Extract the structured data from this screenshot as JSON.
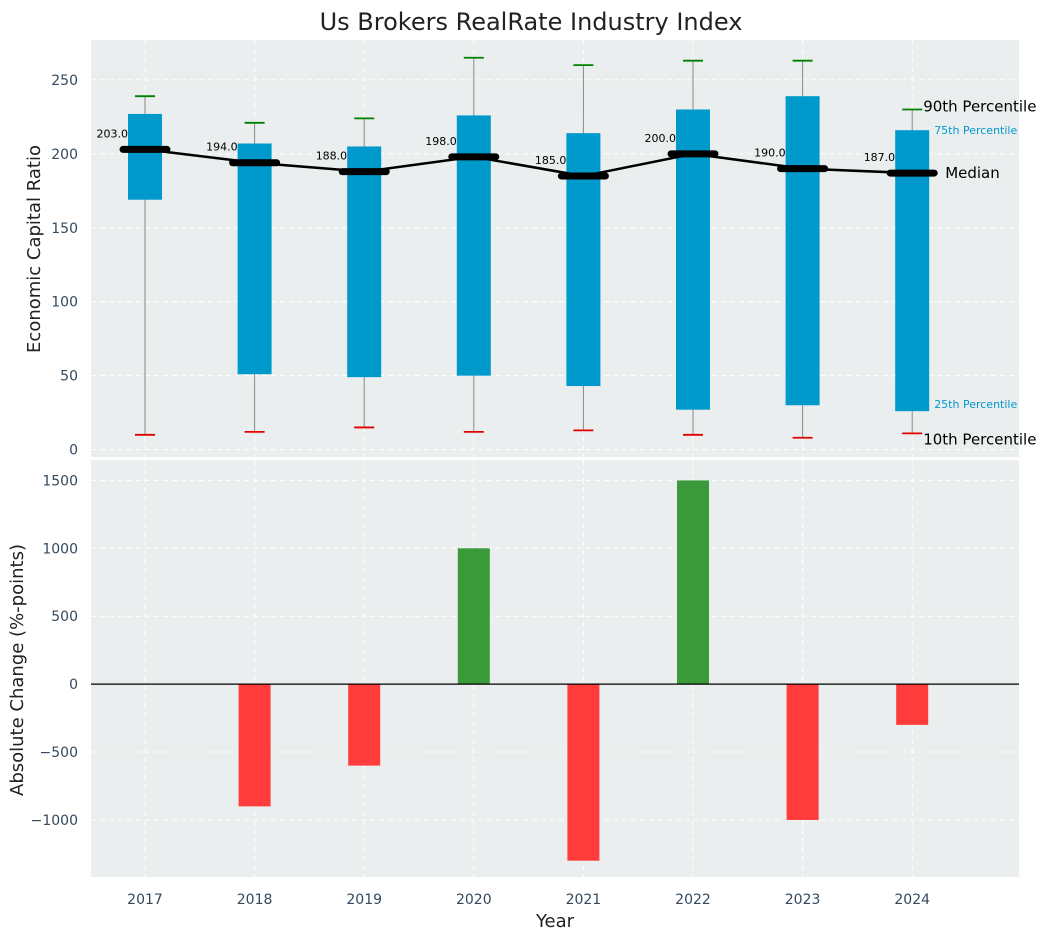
{
  "title": "Us Brokers RealRate Industry Index",
  "chart_data": [
    {
      "type": "box",
      "ylabel": "Economic Capital Ratio",
      "ylim": [
        -5,
        277
      ],
      "yticks": [
        0,
        50,
        100,
        150,
        200,
        250
      ],
      "categories": [
        "2017",
        "2018",
        "2019",
        "2020",
        "2021",
        "2022",
        "2023",
        "2024"
      ],
      "p10": [
        10,
        12,
        15,
        12,
        13,
        10,
        8,
        11
      ],
      "p25": [
        169,
        51,
        49,
        50,
        43,
        27,
        30,
        26
      ],
      "median": [
        203.0,
        194.0,
        188.0,
        198.0,
        185.0,
        200.0,
        190.0,
        187.0
      ],
      "median_labels": [
        "203.0",
        "194.0",
        "188.0",
        "198.0",
        "185.0",
        "200.0",
        "190.0",
        "187.0"
      ],
      "p75": [
        227,
        207,
        205,
        226,
        214,
        230,
        239,
        216
      ],
      "p90": [
        239,
        221,
        224,
        265,
        260,
        263,
        263,
        230
      ],
      "annotations": {
        "p90": "90th Percentile",
        "p75": "75th Percentile",
        "median": "Median",
        "p25": "25th Percentile",
        "p10": "10th Percentile"
      },
      "colors": {
        "box": "#0099cc",
        "median": "#000000",
        "p90_cap": "#008000",
        "p10_cap": "#e00000",
        "whisker": "#888888"
      },
      "grid": true
    },
    {
      "type": "bar",
      "xlabel": "Year",
      "ylabel": "Absolute Change (%-points)",
      "ylim": [
        -1420,
        1650
      ],
      "yticks": [
        -1000,
        -500,
        0,
        500,
        1000,
        1500
      ],
      "ytick_labels": [
        "−1000",
        "−500",
        "0",
        "500",
        "1000",
        "1500"
      ],
      "categories": [
        "2017",
        "2018",
        "2019",
        "2020",
        "2021",
        "2022",
        "2023",
        "2024"
      ],
      "values": [
        0,
        -900,
        -600,
        1000,
        -1300,
        1500,
        -1000,
        -300
      ],
      "colors": {
        "positive": "#3a9a3a",
        "negative": "#ff3b3b",
        "zero_line": "#000000"
      },
      "grid": true
    }
  ]
}
